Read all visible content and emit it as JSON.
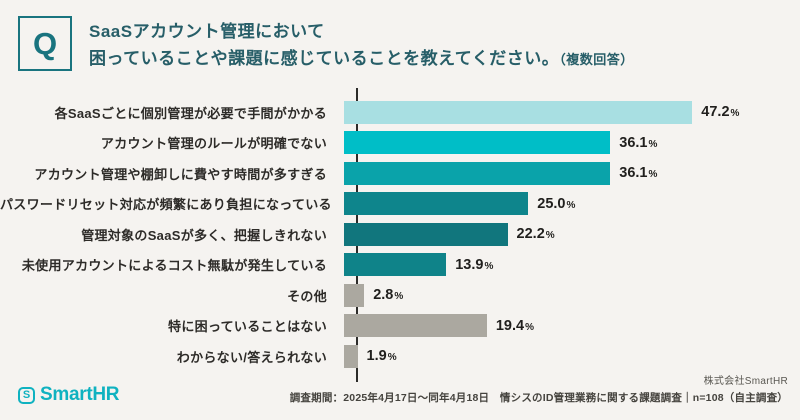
{
  "question": {
    "badge": "Q",
    "title_line1": "SaaSアカウント管理において",
    "title_line2": "困っていることや課題に感じていることを教えてください。",
    "title_note": "（複数回答）"
  },
  "chart_data": {
    "type": "bar",
    "orientation": "horizontal",
    "title": "SaaSアカウント管理において困っていることや課題に感じていること（複数回答）",
    "unit": "%",
    "xlim": [
      0,
      50
    ],
    "grid": false,
    "legend": false,
    "categories": [
      "各SaaSごとに個別管理が必要で手間がかかる",
      "アカウント管理のルールが明確でない",
      "アカウント管理や棚卸しに費やす時間が多すぎる",
      "パスワードリセット対応が頻繁にあり負担になっている",
      "管理対象のSaaSが多く、把握しきれない",
      "未使用アカウントによるコスト無駄が発生している",
      "その他",
      "特に困っていることはない",
      "わからない/答えられない"
    ],
    "values": [
      47.2,
      36.1,
      36.1,
      25.0,
      22.2,
      13.9,
      2.8,
      19.4,
      1.9
    ],
    "value_labels": [
      "47.2",
      "36.1",
      "36.1",
      "25.0",
      "22.2",
      "13.9",
      "2.8",
      "19.4",
      "1.9"
    ],
    "bar_colors": [
      "#A8DFE2",
      "#00BEC7",
      "#0AA3AA",
      "#0E858C",
      "#11767D",
      "#0F8389",
      "#ABA8A0",
      "#ABA8A0",
      "#ABA8A0"
    ]
  },
  "footer": {
    "logo_icon": "S",
    "logo_text": "SmartHR",
    "company": "株式会社SmartHR",
    "survey_note": "調査期間：2025年4月17日～同年4月18日　情シスのID管理業務に関する課題調査｜n=108（自主調査）"
  },
  "colors": {
    "background": "#F5F3F0",
    "accent_teal": "#19747F",
    "title_text": "#275E68",
    "axis": "#2C2B29",
    "gray_bar": "#ABA8A0",
    "brand_logo": "#0FB2C0"
  }
}
